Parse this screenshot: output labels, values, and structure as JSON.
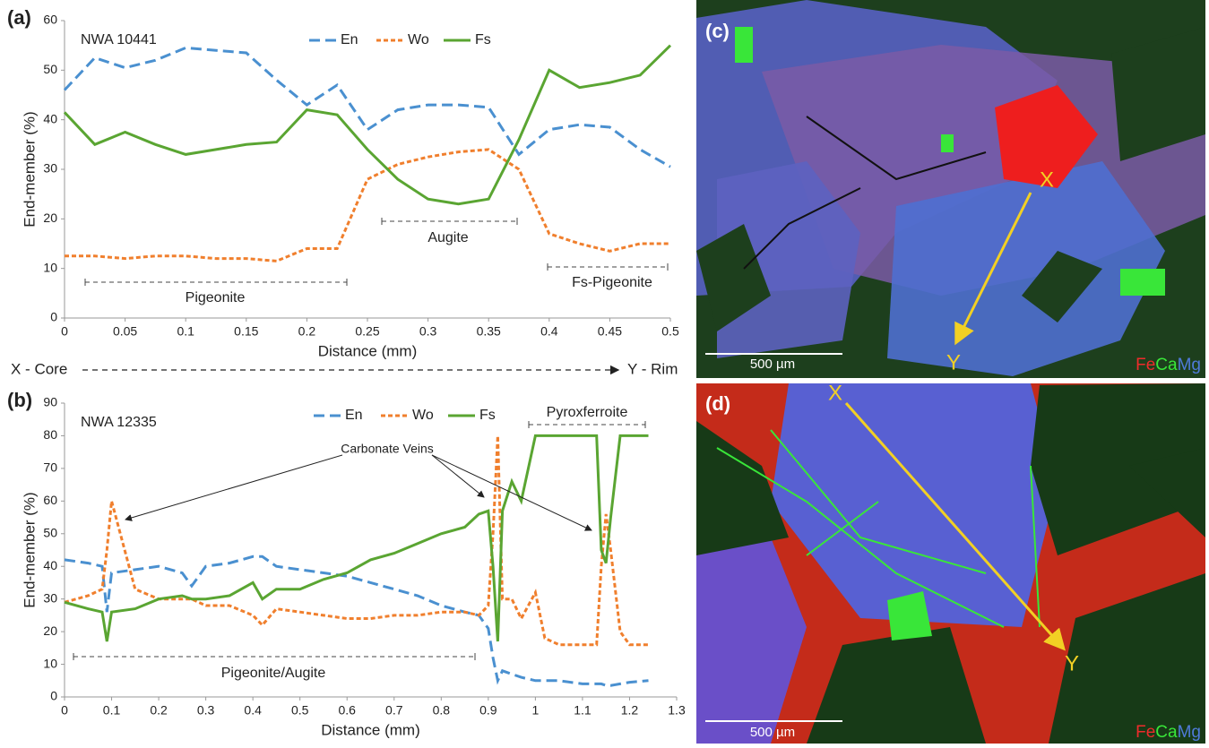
{
  "chart_data": [
    {
      "type": "line",
      "panel_label": "(a)",
      "title": "NWA 10441",
      "xlabel": "Distance (mm)",
      "ylabel": "End-member (%)",
      "x": [
        0,
        0.025,
        0.05,
        0.075,
        0.1,
        0.125,
        0.15,
        0.175,
        0.2,
        0.225,
        0.25,
        0.275,
        0.3,
        0.325,
        0.35,
        0.375,
        0.4,
        0.425,
        0.45,
        0.475,
        0.5
      ],
      "series": [
        {
          "name": "En",
          "color": "#4a90d0",
          "dash": "dashed",
          "values": [
            46,
            52.5,
            50.5,
            52,
            54.5,
            54,
            53.5,
            48,
            43,
            47,
            38,
            42,
            43,
            43,
            42.5,
            33,
            38,
            39,
            38.5,
            34,
            30.5
          ]
        },
        {
          "name": "Wo",
          "color": "#f07f2d",
          "dash": "dotted",
          "values": [
            12.5,
            12.5,
            12,
            12.5,
            12.5,
            12,
            12,
            11.5,
            14,
            14,
            28,
            31,
            32.5,
            33.5,
            34,
            30,
            17,
            15,
            13.5,
            15,
            15
          ]
        },
        {
          "name": "Fs",
          "color": "#5aa532",
          "dash": "solid",
          "values": [
            41.5,
            35,
            37.5,
            35,
            33,
            34,
            35,
            35.5,
            42,
            41,
            34,
            28,
            24,
            23,
            24,
            36,
            50,
            46.5,
            47.5,
            49,
            55
          ]
        }
      ],
      "xlim": [
        0,
        0.5
      ],
      "ylim": [
        0,
        60
      ],
      "xticks": [
        0,
        0.05,
        0.1,
        0.15,
        0.2,
        0.25,
        0.3,
        0.35,
        0.4,
        0.45,
        0.5
      ],
      "yticks": [
        0,
        10,
        20,
        30,
        40,
        50,
        60
      ],
      "annotations": [
        {
          "text": "Pigeonite"
        },
        {
          "text": "Augite"
        },
        {
          "text": "Fs-Pigeonite"
        }
      ]
    },
    {
      "type": "line",
      "panel_label": "(b)",
      "title": "NWA 12335",
      "xlabel": "Distance (mm)",
      "ylabel": "End-member (%)",
      "x": [
        0,
        0.05,
        0.08,
        0.09,
        0.1,
        0.15,
        0.2,
        0.25,
        0.27,
        0.3,
        0.35,
        0.4,
        0.42,
        0.45,
        0.5,
        0.55,
        0.6,
        0.65,
        0.7,
        0.75,
        0.8,
        0.85,
        0.88,
        0.9,
        0.91,
        0.92,
        0.93,
        0.95,
        0.97,
        1.0,
        1.02,
        1.05,
        1.1,
        1.13,
        1.14,
        1.15,
        1.16,
        1.18,
        1.2,
        1.24
      ],
      "series": [
        {
          "name": "En",
          "color": "#4a90d0",
          "dash": "dashed",
          "values": [
            42,
            41,
            40,
            26,
            38,
            39,
            40,
            38,
            34,
            40,
            41,
            43,
            43,
            40,
            39,
            38,
            37,
            35,
            33,
            31,
            28,
            26,
            25,
            21,
            12,
            5,
            8,
            7,
            6,
            5,
            5,
            5,
            4,
            4,
            4,
            3.5,
            3.5,
            4,
            4.5,
            5
          ]
        },
        {
          "name": "Wo",
          "color": "#f07f2d",
          "dash": "dotted",
          "values": [
            29,
            31,
            33,
            45,
            60,
            33,
            30,
            30,
            30,
            28,
            28,
            25,
            22,
            27,
            26,
            25,
            24,
            24,
            25,
            25,
            26,
            26,
            25,
            28,
            50,
            80,
            30,
            30,
            24,
            32,
            18,
            16,
            16,
            16,
            40,
            56,
            45,
            20,
            16,
            16
          ]
        },
        {
          "name": "Fs",
          "color": "#5aa532",
          "dash": "solid",
          "values": [
            29,
            27,
            26,
            17,
            26,
            27,
            30,
            31,
            30,
            30,
            31,
            35,
            30,
            33,
            33,
            36,
            38,
            42,
            44,
            47,
            50,
            52,
            56,
            57,
            40,
            17,
            57,
            66,
            60,
            80,
            80,
            80,
            80,
            80,
            45,
            41,
            55,
            80,
            80,
            80
          ]
        }
      ],
      "xlim": [
        0,
        1.3
      ],
      "ylim": [
        0,
        90
      ],
      "xticks": [
        0,
        0.1,
        0.2,
        0.3,
        0.4,
        0.5,
        0.6,
        0.7,
        0.8,
        0.9,
        1,
        1.1,
        1.2,
        1.3
      ],
      "yticks": [
        0,
        10,
        20,
        30,
        40,
        50,
        60,
        70,
        80,
        90
      ],
      "annotations": [
        {
          "text": "Pigeonite/Augite"
        },
        {
          "text": "Pyroxferroite"
        },
        {
          "text": "Carbonate Veins"
        }
      ]
    }
  ],
  "axis_direction": {
    "start": "X - Core",
    "end": "Y - Rim"
  },
  "images": [
    {
      "label": "(c)",
      "start": "X",
      "end": "Y",
      "scale": "500 µm",
      "elements": [
        "Fe",
        "Ca",
        "Mg"
      ]
    },
    {
      "label": "(d)",
      "start": "X",
      "end": "Y",
      "scale": "500 µm",
      "elements": [
        "Fe",
        "Ca",
        "Mg"
      ]
    }
  ]
}
